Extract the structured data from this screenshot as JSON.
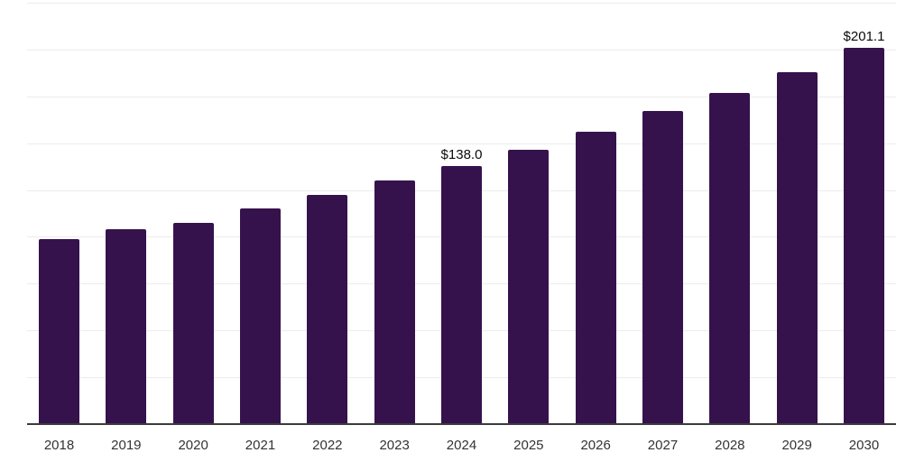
{
  "chart_data": {
    "type": "bar",
    "title": "",
    "xlabel": "",
    "ylabel": "",
    "categories": [
      "2018",
      "2019",
      "2020",
      "2021",
      "2022",
      "2023",
      "2024",
      "2025",
      "2026",
      "2027",
      "2028",
      "2029",
      "2030"
    ],
    "values": [
      98.6,
      103.9,
      107.5,
      115.1,
      122.4,
      129.9,
      138.0,
      146.5,
      156.1,
      167.0,
      177.0,
      188.1,
      201.1
    ],
    "ylim": [
      0,
      225
    ],
    "grid_step": 25,
    "grid": "horizontal",
    "legend": "none",
    "annotations": [
      {
        "category": "2024",
        "text": "$138.0"
      },
      {
        "category": "2030",
        "text": "$201.1"
      }
    ]
  },
  "colors": {
    "bar": "#36124D",
    "gridline": "#ececec",
    "axis_line": "#3b3b3b",
    "tick_label": "#333333",
    "annotation_text": "#0a0a0a",
    "background": "#ffffff"
  }
}
